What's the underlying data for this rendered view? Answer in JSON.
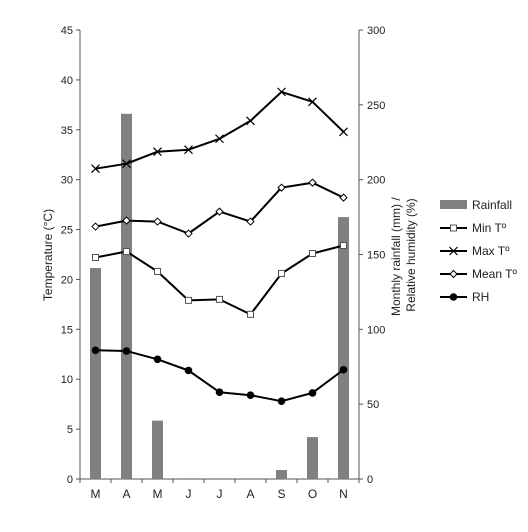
{
  "chart_data": {
    "type": "bar+line",
    "categories": [
      "M",
      "A",
      "M",
      "J",
      "J",
      "A",
      "S",
      "O",
      "N"
    ],
    "left_axis": {
      "label": "Temperature (°C)",
      "ylim": [
        0,
        45
      ],
      "ticks": [
        0,
        5,
        10,
        15,
        20,
        25,
        30,
        35,
        40,
        45
      ]
    },
    "right_axis": {
      "label_lines": [
        "Monthly rainfall (mm) /",
        "Relative humidity (%)"
      ],
      "ylim": [
        0,
        300
      ],
      "ticks": [
        0,
        50,
        100,
        150,
        200,
        250,
        300
      ]
    },
    "grid": false,
    "legend_position": "right",
    "series": [
      {
        "name": "Rainfall",
        "type": "bar",
        "axis": "right",
        "color": "#808080",
        "marker": "bar",
        "values": [
          141,
          244,
          39,
          0.5,
          0,
          0,
          6,
          28,
          175
        ]
      },
      {
        "name": "Min Tº",
        "type": "line",
        "axis": "left",
        "color": "#000000",
        "marker": "square",
        "values": [
          22.2,
          22.8,
          20.8,
          17.9,
          18.0,
          16.5,
          20.6,
          22.6,
          23.4
        ]
      },
      {
        "name": "Max Tº",
        "type": "line",
        "axis": "left",
        "color": "#000000",
        "marker": "x",
        "values": [
          31.1,
          31.6,
          32.8,
          33.0,
          34.1,
          35.9,
          38.8,
          37.8,
          34.8
        ]
      },
      {
        "name": "Mean Tº",
        "type": "line",
        "axis": "left",
        "color": "#000000",
        "marker": "diamond",
        "values": [
          25.3,
          25.9,
          25.8,
          24.6,
          26.8,
          25.8,
          29.2,
          29.7,
          28.2
        ]
      },
      {
        "name": "RH",
        "type": "line",
        "axis": "right",
        "color": "#000000",
        "marker": "circle",
        "values": [
          86,
          85.5,
          80,
          72.5,
          58,
          56,
          52,
          57.5,
          73
        ]
      }
    ]
  }
}
